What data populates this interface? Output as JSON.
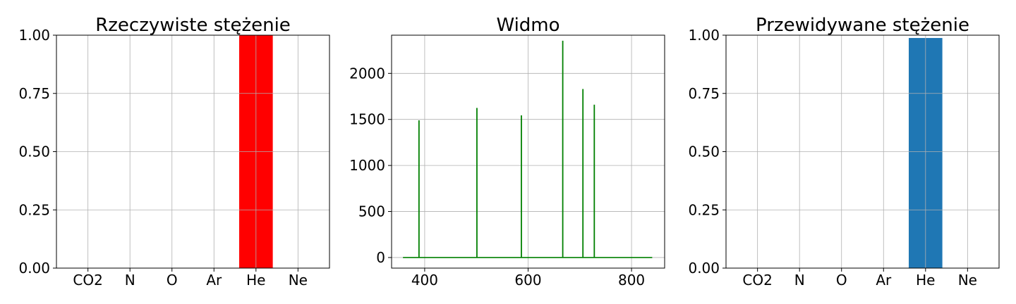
{
  "chart_data": [
    {
      "type": "bar",
      "title": "Rzeczywiste stężenie",
      "categories": [
        "CO2",
        "N",
        "O",
        "Ar",
        "He",
        "Ne"
      ],
      "values": [
        0,
        0,
        0,
        0,
        1.0,
        0
      ],
      "ylim": [
        0,
        1.0
      ],
      "yticks": [
        "0.00",
        "0.25",
        "0.50",
        "0.75",
        "1.00"
      ],
      "bar_color": "#ff0000",
      "grid": true
    },
    {
      "type": "line",
      "title": "Widmo",
      "xlim": [
        336,
        864
      ],
      "ylim": [
        -115,
        2415
      ],
      "xticks": [
        400,
        600,
        800
      ],
      "yticks": [
        0,
        500,
        1000,
        1500,
        2000
      ],
      "line_color": "#008000",
      "baseline_x": [
        358,
        840
      ],
      "peaks": [
        {
          "x": 389,
          "y": 1490
        },
        {
          "x": 501,
          "y": 1625
        },
        {
          "x": 587,
          "y": 1545
        },
        {
          "x": 667,
          "y": 2355
        },
        {
          "x": 706,
          "y": 1830
        },
        {
          "x": 728,
          "y": 1660
        }
      ],
      "grid": true
    },
    {
      "type": "bar",
      "title": "Przewidywane stężenie",
      "categories": [
        "CO2",
        "N",
        "O",
        "Ar",
        "He",
        "Ne"
      ],
      "values": [
        0,
        0,
        0,
        0,
        0.988,
        0
      ],
      "ylim": [
        0,
        1.0
      ],
      "yticks": [
        "0.00",
        "0.25",
        "0.50",
        "0.75",
        "1.00"
      ],
      "bar_color": "#1f77b4",
      "grid": true
    }
  ]
}
